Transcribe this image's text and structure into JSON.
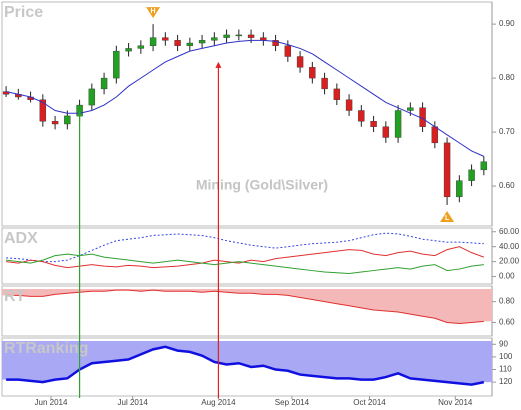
{
  "chart_data": [
    {
      "type": "candlestick",
      "title": "Price",
      "watermark": "Mining (Gold\\Silver)",
      "x": [
        1,
        4,
        7,
        10,
        13,
        16,
        19,
        22,
        25,
        28,
        31,
        34,
        37,
        40,
        43,
        46,
        49,
        52,
        55,
        58,
        61,
        64,
        67,
        70,
        73,
        76,
        79,
        82,
        85,
        88,
        91,
        94,
        97,
        100,
        103,
        106,
        109,
        112,
        115,
        118
      ],
      "open": [
        0.775,
        0.77,
        0.765,
        0.76,
        0.72,
        0.715,
        0.73,
        0.75,
        0.78,
        0.8,
        0.85,
        0.855,
        0.86,
        0.875,
        0.87,
        0.86,
        0.865,
        0.87,
        0.875,
        0.88,
        0.88,
        0.875,
        0.87,
        0.86,
        0.84,
        0.82,
        0.8,
        0.78,
        0.76,
        0.74,
        0.72,
        0.71,
        0.69,
        0.74,
        0.745,
        0.71,
        0.68,
        0.58,
        0.61,
        0.63
      ],
      "high": [
        0.785,
        0.78,
        0.775,
        0.77,
        0.73,
        0.74,
        0.76,
        0.79,
        0.81,
        0.86,
        0.865,
        0.87,
        0.9,
        0.885,
        0.88,
        0.875,
        0.88,
        0.885,
        0.89,
        0.89,
        0.89,
        0.885,
        0.88,
        0.87,
        0.85,
        0.83,
        0.81,
        0.79,
        0.77,
        0.75,
        0.73,
        0.72,
        0.75,
        0.755,
        0.755,
        0.72,
        0.69,
        0.62,
        0.64,
        0.655
      ],
      "low": [
        0.765,
        0.76,
        0.755,
        0.71,
        0.705,
        0.705,
        0.72,
        0.74,
        0.77,
        0.79,
        0.84,
        0.845,
        0.85,
        0.86,
        0.85,
        0.85,
        0.855,
        0.86,
        0.865,
        0.87,
        0.865,
        0.86,
        0.85,
        0.83,
        0.81,
        0.79,
        0.77,
        0.75,
        0.73,
        0.71,
        0.7,
        0.68,
        0.68,
        0.73,
        0.7,
        0.67,
        0.565,
        0.57,
        0.6,
        0.62
      ],
      "close": [
        0.77,
        0.765,
        0.76,
        0.72,
        0.715,
        0.73,
        0.75,
        0.78,
        0.8,
        0.85,
        0.855,
        0.86,
        0.875,
        0.87,
        0.86,
        0.865,
        0.87,
        0.875,
        0.88,
        0.88,
        0.875,
        0.87,
        0.86,
        0.84,
        0.82,
        0.8,
        0.78,
        0.76,
        0.74,
        0.72,
        0.71,
        0.69,
        0.74,
        0.745,
        0.71,
        0.68,
        0.58,
        0.61,
        0.63,
        0.645
      ],
      "up_color": "#22a022",
      "down_color": "#d82020",
      "overlay": {
        "color": "#3030c8",
        "values": [
          0.775,
          0.77,
          0.765,
          0.755,
          0.74,
          0.735,
          0.735,
          0.74,
          0.75,
          0.765,
          0.785,
          0.8,
          0.815,
          0.83,
          0.84,
          0.85,
          0.855,
          0.86,
          0.865,
          0.868,
          0.87,
          0.87,
          0.868,
          0.862,
          0.855,
          0.845,
          0.83,
          0.815,
          0.8,
          0.785,
          0.77,
          0.755,
          0.745,
          0.735,
          0.725,
          0.71,
          0.695,
          0.68,
          0.665,
          0.655
        ]
      },
      "markers": [
        {
          "label": "H",
          "x": 37,
          "value": 0.9,
          "color": "#f0a020"
        },
        {
          "label": "L",
          "x": 109,
          "value": 0.565,
          "color": "#f0a020"
        }
      ],
      "signals": [
        {
          "x": 19,
          "value": 0.74,
          "color": "#30a030"
        },
        {
          "x": 53,
          "value": 0.83,
          "color": "#e02020"
        }
      ],
      "xlim": [
        0,
        120
      ],
      "ylim": [
        0.526,
        0.941
      ],
      "yticks": [
        {
          "value": 0.6,
          "label": "0.60"
        },
        {
          "value": 0.7,
          "label": "0.70"
        },
        {
          "value": 0.8,
          "label": "0.80"
        },
        {
          "value": 0.9,
          "label": "0.90"
        }
      ]
    },
    {
      "type": "line",
      "title": "ADX",
      "x": [
        1,
        4,
        7,
        10,
        13,
        16,
        19,
        22,
        25,
        28,
        31,
        34,
        37,
        40,
        43,
        46,
        49,
        52,
        55,
        58,
        61,
        64,
        67,
        70,
        73,
        76,
        79,
        82,
        85,
        88,
        91,
        94,
        97,
        100,
        103,
        106,
        109,
        112,
        115,
        118
      ],
      "series": [
        {
          "color": "#3344dd",
          "dash": true,
          "values": [
            25,
            24,
            22,
            20,
            20,
            22,
            28,
            35,
            42,
            48,
            50,
            52,
            55,
            56,
            57,
            56,
            55,
            52,
            48,
            45,
            42,
            40,
            38,
            40,
            42,
            44,
            45,
            46,
            48,
            52,
            56,
            58,
            57,
            54,
            50,
            48,
            46,
            46,
            45,
            44
          ]
        },
        {
          "color": "#e03030",
          "values": [
            20,
            18,
            22,
            20,
            15,
            12,
            14,
            16,
            14,
            13,
            15,
            14,
            12,
            13,
            14,
            16,
            18,
            22,
            20,
            18,
            22,
            20,
            24,
            26,
            28,
            30,
            32,
            34,
            36,
            35,
            30,
            28,
            32,
            34,
            30,
            28,
            36,
            40,
            32,
            26
          ]
        },
        {
          "color": "#30a030",
          "values": [
            22,
            20,
            18,
            22,
            28,
            30,
            28,
            30,
            26,
            24,
            22,
            20,
            18,
            20,
            22,
            20,
            18,
            16,
            18,
            20,
            18,
            16,
            14,
            12,
            10,
            8,
            6,
            5,
            4,
            6,
            8,
            10,
            12,
            10,
            14,
            16,
            8,
            10,
            14,
            16
          ]
        }
      ],
      "xlim": [
        0,
        120
      ],
      "ylim": [
        -10,
        65
      ],
      "yticks": [
        {
          "value": 0,
          "label": "0.00"
        },
        {
          "value": 20,
          "label": "20.00"
        },
        {
          "value": 40,
          "label": "40.00"
        },
        {
          "value": 60,
          "label": "60.00"
        }
      ]
    },
    {
      "type": "area",
      "title": "RT",
      "x": [
        1,
        4,
        7,
        10,
        13,
        16,
        19,
        22,
        25,
        28,
        31,
        34,
        37,
        40,
        43,
        46,
        49,
        52,
        55,
        58,
        61,
        64,
        67,
        70,
        73,
        76,
        79,
        82,
        85,
        88,
        91,
        94,
        97,
        100,
        103,
        106,
        109,
        112,
        115,
        118
      ],
      "values": [
        0.86,
        0.86,
        0.85,
        0.85,
        0.87,
        0.88,
        0.89,
        0.9,
        0.9,
        0.91,
        0.91,
        0.9,
        0.91,
        0.9,
        0.9,
        0.9,
        0.89,
        0.9,
        0.89,
        0.88,
        0.88,
        0.87,
        0.87,
        0.86,
        0.84,
        0.82,
        0.8,
        0.78,
        0.76,
        0.74,
        0.72,
        0.71,
        0.7,
        0.68,
        0.66,
        0.64,
        0.6,
        0.59,
        0.6,
        0.61
      ],
      "color": "#e03030",
      "fill": "#f4b8b8",
      "xlim": [
        0,
        120
      ],
      "ylim": [
        0.47,
        0.95
      ],
      "yticks": [
        {
          "value": 0.6,
          "label": "0.60"
        },
        {
          "value": 0.8,
          "label": "0.80"
        }
      ]
    },
    {
      "type": "area",
      "title": "RTRanking",
      "x": [
        1,
        4,
        7,
        10,
        13,
        16,
        19,
        22,
        25,
        28,
        31,
        34,
        37,
        40,
        43,
        46,
        49,
        52,
        55,
        58,
        61,
        64,
        67,
        70,
        73,
        76,
        79,
        82,
        85,
        88,
        91,
        94,
        97,
        100,
        103,
        106,
        109,
        112,
        115,
        118
      ],
      "values": [
        118,
        118,
        119,
        120,
        118,
        117,
        110,
        105,
        104,
        103,
        102,
        98,
        94,
        92,
        95,
        96,
        99,
        104,
        106,
        105,
        108,
        107,
        110,
        111,
        114,
        115,
        116,
        117,
        117,
        118,
        118,
        116,
        113,
        117,
        118,
        119,
        120,
        121,
        122,
        120
      ],
      "color": "#1010e0",
      "fill": "#a8a8f4",
      "inverted": true,
      "xlim": [
        0,
        120
      ],
      "ylim": [
        85,
        131
      ],
      "yticks": [
        90,
        100,
        110,
        120
      ],
      "xticks": [
        {
          "value": 12,
          "label": "Jun 2014"
        },
        {
          "value": 32,
          "label": "Jul 2014"
        },
        {
          "value": 53,
          "label": "Aug 2014"
        },
        {
          "value": 71,
          "label": "Sep 2014"
        },
        {
          "value": 90,
          "label": "Oct 2014"
        },
        {
          "value": 111,
          "label": "Nov 2014"
        }
      ]
    }
  ]
}
